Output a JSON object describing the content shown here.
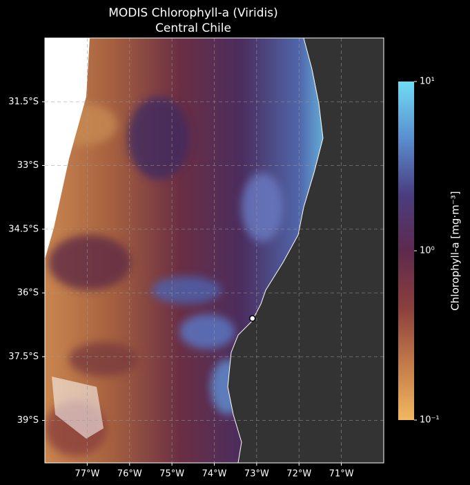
{
  "chart_data": {
    "type": "map",
    "title": "MODIS Chlorophyll-a (Viridis)",
    "subtitle": "Central Chile",
    "xlim": [
      -78,
      -70
    ],
    "ylim": [
      -40,
      -30
    ],
    "xticks": [
      {
        "value": -77,
        "label": "77°W"
      },
      {
        "value": -76,
        "label": "76°W"
      },
      {
        "value": -75,
        "label": "75°W"
      },
      {
        "value": -74,
        "label": "74°W"
      },
      {
        "value": -73,
        "label": "73°W"
      },
      {
        "value": -72,
        "label": "72°W"
      },
      {
        "value": -71,
        "label": "71°W"
      }
    ],
    "yticks": [
      {
        "value": -31.5,
        "label": "31.5°S"
      },
      {
        "value": -33,
        "label": "33°S"
      },
      {
        "value": -34.5,
        "label": "34.5°S"
      },
      {
        "value": -36,
        "label": "36°S"
      },
      {
        "value": -37.5,
        "label": "37.5°S"
      },
      {
        "value": -39,
        "label": "39°S"
      }
    ],
    "grid": true,
    "marker": {
      "lon": -73.1,
      "lat": -36.6
    },
    "colorbar": {
      "label": "Chlorophyll-a [mg·m⁻³]",
      "scale": "log",
      "lim": [
        0.1,
        10
      ],
      "ticks": [
        {
          "value": 10,
          "label": "10¹"
        },
        {
          "value": 1,
          "label": "10⁰"
        },
        {
          "value": 0.1,
          "label": "10⁻¹"
        }
      ],
      "colors": [
        "#f3b860",
        "#c27a4a",
        "#8a3f3c",
        "#5e2a4e",
        "#4a3d80",
        "#5a8fd0",
        "#70dcf4"
      ]
    }
  }
}
